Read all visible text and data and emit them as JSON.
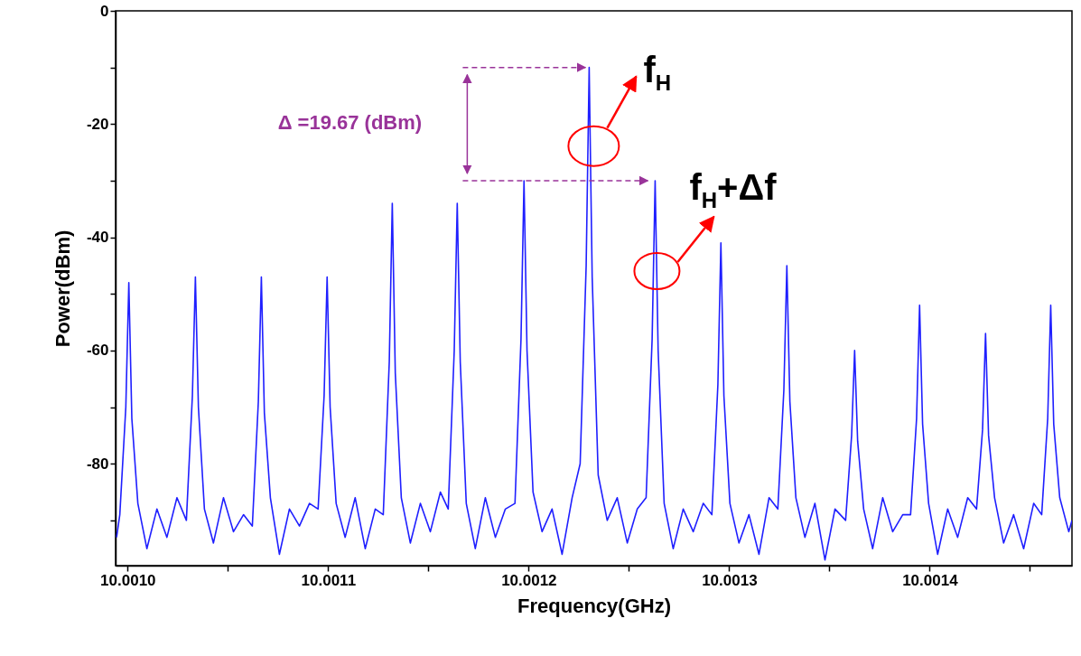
{
  "chart_data": {
    "type": "line",
    "xlabel": "Frequency(GHz)",
    "ylabel": "Power(dBm)",
    "xlim": [
      10.000994,
      10.001471
    ],
    "ylim": [
      -98,
      0
    ],
    "xticks": [
      {
        "value": 10.001,
        "label": "10.0010"
      },
      {
        "value": 10.00105,
        "label": null
      },
      {
        "value": 10.0011,
        "label": "10.0011"
      },
      {
        "value": 10.00115,
        "label": null
      },
      {
        "value": 10.0012,
        "label": "10.0012"
      },
      {
        "value": 10.00125,
        "label": null
      },
      {
        "value": 10.0013,
        "label": "10.0013"
      },
      {
        "value": 10.00135,
        "label": null
      },
      {
        "value": 10.0014,
        "label": "10.0014"
      },
      {
        "value": 10.00145,
        "label": null
      }
    ],
    "yticks": [
      0,
      {
        "value": -10,
        "label": null
      },
      -20,
      {
        "value": -30,
        "label": null
      },
      -40,
      {
        "value": -50,
        "label": null
      },
      -60,
      {
        "value": -70,
        "label": null
      },
      -80,
      {
        "value": -90,
        "label": null
      }
    ],
    "grid": false,
    "marker": "none",
    "line_style": "solid",
    "annotations": [
      "Δ =19.67 (dBm)",
      "f$_{H}$",
      "f$_{H}$+Δf"
    ],
    "x": [
      10.0009945,
      10.0009961,
      10.0009991,
      10.0010006,
      10.0010021,
      10.0010051,
      10.0010096,
      10.0010146,
      10.0010196,
      10.0010246,
      10.0010293,
      10.0010323,
      10.0010338,
      10.0010353,
      10.0010383,
      10.0010428,
      10.0010478,
      10.0010528,
      10.0010578,
      10.0010622,
      10.0010652,
      10.0010667,
      10.0010682,
      10.0010712,
      10.0010757,
      10.0010807,
      10.0010857,
      10.0010907,
      10.001095,
      10.001098,
      10.0010995,
      10.001101,
      10.001104,
      10.0011085,
      10.0011135,
      10.0011185,
      10.0011235,
      10.0011275,
      10.0011305,
      10.001132,
      10.0011335,
      10.0011365,
      10.001141,
      10.001146,
      10.001151,
      10.001156,
      10.0011599,
      10.0011629,
      10.0011644,
      10.0011659,
      10.0011689,
      10.0011734,
      10.0011784,
      10.0011834,
      10.0011884,
      10.0011932,
      10.0011962,
      10.0011977,
      10.0011992,
      10.0012022,
      10.0012067,
      10.0012117,
      10.0012167,
      10.0012217,
      10.0012257,
      10.0012287,
      10.0012302,
      10.0012317,
      10.0012347,
      10.0012392,
      10.0012442,
      10.0012492,
      10.0012542,
      10.0012586,
      10.0012616,
      10.0012631,
      10.0012646,
      10.0012676,
      10.0012721,
      10.0012771,
      10.0012821,
      10.0012871,
      10.0012914,
      10.0012944,
      10.0012959,
      10.0012974,
      10.0013004,
      10.0013049,
      10.0013099,
      10.0013149,
      10.0013199,
      10.0013243,
      10.0013273,
      10.0013288,
      10.0013303,
      10.0013333,
      10.0013378,
      10.0013428,
      10.0013478,
      10.0013528,
      10.0013581,
      10.0013611,
      10.0013626,
      10.0013641,
      10.0013671,
      10.0013716,
      10.0013766,
      10.0013816,
      10.0013866,
      10.0013905,
      10.0013935,
      10.001395,
      10.0013965,
      10.0013995,
      10.001404,
      10.001409,
      10.001414,
      10.001419,
      10.0014234,
      10.0014264,
      10.0014279,
      10.0014294,
      10.0014324,
      10.0014369,
      10.0014419,
      10.0014469,
      10.0014519,
      10.0014559,
      10.0014589,
      10.0014604,
      10.0014619,
      10.0014649,
      10.0014694,
      10.001471
    ],
    "series": [
      {
        "color": "#1f1fff",
        "values": [
          -93,
          -89,
          -70,
          -48,
          -72,
          -87,
          -95,
          -88,
          -93,
          -86,
          -90,
          -68,
          -47,
          -70,
          -88,
          -94,
          -86,
          -92,
          -89,
          -91,
          -69,
          -47,
          -71,
          -86,
          -96,
          -88,
          -91,
          -87,
          -88,
          -68,
          -47,
          -70,
          -87,
          -93,
          -86,
          -95,
          -88,
          -89,
          -62,
          -34,
          -64,
          -86,
          -94,
          -87,
          -92,
          -85,
          -88,
          -60,
          -34,
          -62,
          -87,
          -95,
          -86,
          -93,
          -88,
          -87,
          -58,
          -30,
          -60,
          -85,
          -92,
          -88,
          -96,
          -86,
          -80,
          -45,
          -10,
          -47,
          -82,
          -90,
          -86,
          -94,
          -88,
          -86,
          -58,
          -30,
          -60,
          -87,
          -95,
          -88,
          -92,
          -87,
          -89,
          -66,
          -41,
          -68,
          -87,
          -94,
          -89,
          -96,
          -86,
          -88,
          -67,
          -45,
          -69,
          -86,
          -93,
          -87,
          -97,
          -88,
          -90,
          -75,
          -60,
          -76,
          -88,
          -95,
          -86,
          -92,
          -89,
          -89,
          -72,
          -52,
          -73,
          -87,
          -96,
          -88,
          -93,
          -86,
          -88,
          -74,
          -57,
          -75,
          -86,
          -94,
          -89,
          -95,
          -87,
          -89,
          -72,
          -52,
          -73,
          -86,
          -92,
          -90
        ]
      }
    ]
  }
}
